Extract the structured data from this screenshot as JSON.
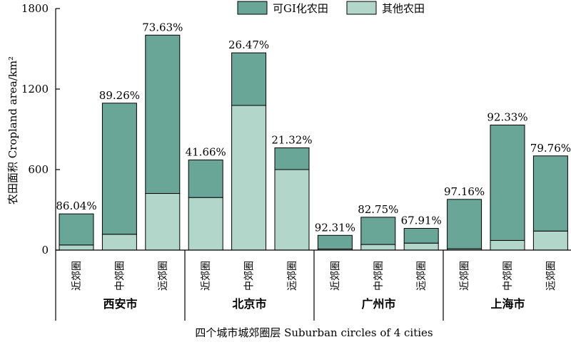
{
  "chart_data": {
    "type": "bar",
    "stacked": true,
    "ylabel": "农田面积 Cropland area/km²",
    "xlabel": "四个城市城郊圈层 Suburban circles of 4 cities",
    "ylim": [
      0,
      1800
    ],
    "yticks": [
      0,
      600,
      1200,
      1800
    ],
    "groups": [
      {
        "name": "西安市",
        "categories": [
          "近郊圈",
          "中郊圈",
          "远郊圈"
        ]
      },
      {
        "name": "北京市",
        "categories": [
          "近郊圈",
          "中郊圈",
          "远郊圈"
        ]
      },
      {
        "name": "广州市",
        "categories": [
          "近郊圈",
          "中郊圈",
          "远郊圈"
        ]
      },
      {
        "name": "上海市",
        "categories": [
          "近郊圈",
          "中郊圈",
          "远郊圈"
        ]
      }
    ],
    "series": [
      {
        "name": "其他农田",
        "color": "#b3d6cb",
        "values": [
          38,
          118,
          422,
          392,
          1078,
          600,
          8,
          42,
          52,
          10,
          72,
          142
        ]
      },
      {
        "name": "可GI化农田",
        "color": "#6aa697",
        "values": [
          232,
          977,
          1180,
          280,
          392,
          162,
          102,
          203,
          110,
          368,
          860,
          560
        ]
      }
    ],
    "percent_labels": [
      "86.04%",
      "89.26%",
      "73.63%",
      "41.66%",
      "26.47%",
      "21.32%",
      "92.31%",
      "82.75%",
      "67.91%",
      "97.16%",
      "92.33%",
      "79.76%"
    ],
    "legend": {
      "position": "top-right",
      "order": [
        "可GI化农田",
        "其他农田"
      ]
    },
    "grid": false
  }
}
